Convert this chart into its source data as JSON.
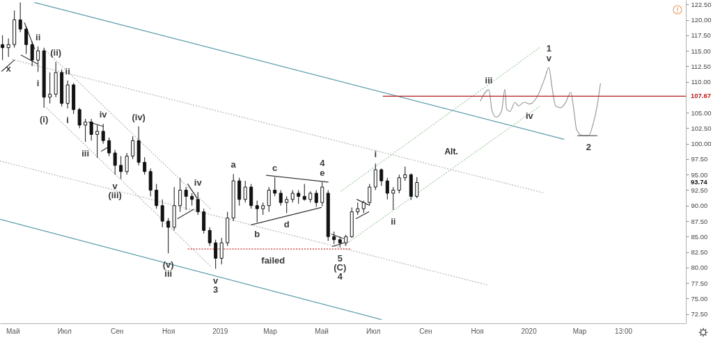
{
  "chart_data": {
    "type": "candlestick",
    "color": "#111111",
    "x": [
      "2018-04-19",
      "2018-04-26",
      "2018-05-03",
      "2018-05-10",
      "2018-05-17",
      "2018-05-24",
      "2018-05-31",
      "2018-06-07",
      "2018-06-14",
      "2018-06-21",
      "2018-06-28",
      "2018-07-05",
      "2018-07-12",
      "2018-07-19",
      "2018-07-26",
      "2018-08-02",
      "2018-08-09",
      "2018-08-16",
      "2018-08-23",
      "2018-08-30",
      "2018-09-06",
      "2018-09-13",
      "2018-09-20",
      "2018-09-27",
      "2018-10-04",
      "2018-10-11",
      "2018-10-18",
      "2018-10-25",
      "2018-11-01",
      "2018-11-08",
      "2018-11-15",
      "2018-11-22",
      "2018-11-29",
      "2018-12-06",
      "2018-12-13",
      "2018-12-20",
      "2018-12-27",
      "2019-01-03",
      "2019-01-10",
      "2019-01-17",
      "2019-01-24",
      "2019-01-31",
      "2019-02-07",
      "2019-02-14",
      "2019-02-21",
      "2019-02-28",
      "2019-03-07",
      "2019-03-14",
      "2019-03-21",
      "2019-03-28",
      "2019-04-04",
      "2019-04-11",
      "2019-04-18",
      "2019-04-25",
      "2019-05-02",
      "2019-05-09",
      "2019-05-16",
      "2019-05-23",
      "2019-05-30",
      "2019-06-06",
      "2019-06-13",
      "2019-06-20",
      "2019-06-27",
      "2019-07-04",
      "2019-07-11",
      "2019-07-18",
      "2019-07-25",
      "2019-08-01",
      "2019-08-08",
      "2019-08-15",
      "2019-08-22"
    ],
    "ohlc": [
      [
        116.0,
        117.5,
        113.5,
        115.5
      ],
      [
        115.5,
        117.0,
        114.0,
        116.0
      ],
      [
        116.0,
        121.5,
        115.5,
        120.0
      ],
      [
        120.0,
        122.8,
        118.0,
        118.5
      ],
      [
        118.5,
        119.0,
        114.5,
        116.0
      ],
      [
        116.0,
        116.5,
        112.5,
        113.5
      ],
      [
        113.5,
        115.7,
        111.6,
        115.0
      ],
      [
        115.0,
        115.5,
        105.8,
        107.5
      ],
      [
        107.5,
        111.5,
        106.5,
        108.0
      ],
      [
        108.0,
        113.2,
        107.5,
        111.5
      ],
      [
        111.5,
        112.0,
        106.0,
        106.5
      ],
      [
        106.5,
        110.2,
        105.7,
        109.5
      ],
      [
        109.5,
        109.8,
        104.8,
        105.5
      ],
      [
        105.5,
        105.8,
        102.5,
        103.0
      ],
      [
        103.0,
        104.0,
        100.3,
        103.5
      ],
      [
        103.5,
        104.0,
        100.5,
        101.5
      ],
      [
        101.5,
        103.0,
        97.7,
        102.0
      ],
      [
        102.0,
        103.2,
        100.0,
        100.5
      ],
      [
        100.5,
        101.0,
        98.0,
        98.5
      ],
      [
        98.5,
        99.0,
        95.0,
        96.5
      ],
      [
        96.5,
        98.0,
        94.3,
        95.5
      ],
      [
        95.5,
        98.5,
        95.0,
        98.0
      ],
      [
        98.0,
        101.2,
        97.5,
        100.5
      ],
      [
        100.5,
        102.8,
        96.5,
        97.0
      ],
      [
        97.0,
        97.8,
        95.0,
        95.5
      ],
      [
        95.5,
        96.0,
        91.5,
        92.5
      ],
      [
        92.5,
        93.5,
        89.5,
        90.0
      ],
      [
        90.0,
        91.0,
        86.5,
        87.5
      ],
      [
        87.5,
        88.0,
        82.3,
        86.5
      ],
      [
        86.5,
        93.0,
        86.0,
        90.0
      ],
      [
        90.0,
        94.5,
        89.0,
        92.5
      ],
      [
        92.5,
        93.0,
        89.3,
        91.5
      ],
      [
        91.5,
        92.0,
        90.0,
        91.0
      ],
      [
        91.0,
        92.2,
        88.5,
        89.0
      ],
      [
        89.0,
        89.5,
        85.5,
        86.0
      ],
      [
        86.0,
        86.5,
        83.5,
        84.0
      ],
      [
        84.0,
        84.5,
        79.8,
        81.5
      ],
      [
        81.5,
        84.8,
        80.5,
        84.0
      ],
      [
        84.0,
        89.0,
        83.5,
        88.0
      ],
      [
        88.0,
        95.1,
        87.5,
        94.0
      ],
      [
        94.0,
        94.5,
        90.0,
        91.0
      ],
      [
        91.0,
        94.0,
        90.5,
        93.0
      ],
      [
        93.0,
        93.5,
        89.5,
        90.0
      ],
      [
        90.0,
        90.8,
        87.3,
        89.5
      ],
      [
        89.5,
        90.5,
        88.5,
        90.0
      ],
      [
        90.0,
        93.0,
        89.0,
        92.5
      ],
      [
        92.5,
        94.6,
        91.5,
        92.0
      ],
      [
        92.0,
        92.5,
        90.0,
        90.5
      ],
      [
        90.5,
        91.5,
        88.8,
        91.0
      ],
      [
        91.0,
        92.5,
        90.5,
        92.0
      ],
      [
        92.0,
        92.5,
        90.3,
        91.5
      ],
      [
        91.5,
        93.5,
        90.8,
        91.0
      ],
      [
        91.0,
        92.3,
        90.5,
        92.0
      ],
      [
        92.0,
        92.5,
        89.8,
        90.5
      ],
      [
        90.5,
        93.8,
        89.9,
        93.0
      ],
      [
        92.0,
        92.5,
        84.3,
        85.0
      ],
      [
        85.0,
        85.8,
        83.8,
        84.5
      ],
      [
        84.5,
        85.0,
        83.3,
        84.0
      ],
      [
        84.0,
        85.3,
        83.5,
        85.0
      ],
      [
        85.0,
        89.7,
        84.8,
        89.0
      ],
      [
        89.0,
        90.5,
        88.5,
        89.5
      ],
      [
        89.5,
        90.8,
        88.8,
        90.5
      ],
      [
        90.5,
        93.5,
        90.0,
        93.0
      ],
      [
        93.0,
        96.8,
        92.5,
        95.8
      ],
      [
        95.8,
        96.0,
        93.2,
        94.0
      ],
      [
        94.0,
        94.5,
        91.0,
        92.0
      ],
      [
        92.0,
        93.0,
        89.3,
        92.5
      ],
      [
        92.5,
        95.0,
        92.0,
        94.5
      ],
      [
        94.5,
        96.3,
        94.0,
        95.0
      ],
      [
        95.0,
        95.2,
        90.9,
        91.5
      ],
      [
        91.5,
        94.6,
        91.2,
        93.74
      ]
    ],
    "series": [
      {
        "type": "line",
        "color": "#5a9bab",
        "line_style": "solid",
        "x": [
          "2018-05-27",
          "2020-02-12"
        ],
        "values": [
          122.8,
          100.7
        ]
      },
      {
        "type": "line",
        "color": "#5a9bab",
        "line_style": "solid",
        "x": [
          "2018-04-16",
          "2019-07-11"
        ],
        "values": [
          87.8,
          71.6
        ]
      },
      {
        "type": "line",
        "color": "#b5b5b5",
        "line_style": "dotted",
        "x": [
          "2018-04-30",
          "2020-01-18"
        ],
        "values": [
          113.6,
          92.1
        ]
      },
      {
        "type": "line",
        "color": "#b5b5b5",
        "line_style": "dotted",
        "x": [
          "2018-04-16",
          "2019-11-13"
        ],
        "values": [
          97.2,
          77.2
        ]
      },
      {
        "type": "line",
        "color": "#b5b5b5",
        "line_style": "dotted",
        "x": [
          "2018-06-07",
          "2018-12-21"
        ],
        "values": [
          115.3,
          89.5
        ]
      },
      {
        "type": "line",
        "color": "#b5b5b5",
        "line_style": "dotted",
        "x": [
          "2018-06-10",
          "2018-12-21"
        ],
        "values": [
          105.8,
          80.2
        ]
      },
      {
        "type": "line",
        "color": "#9fc89f",
        "line_style": "dotted",
        "x": [
          "2019-05-24",
          "2020-01-14"
        ],
        "values": [
          92.3,
          115.5
        ]
      },
      {
        "type": "line",
        "color": "#9fc89f",
        "line_style": "dotted",
        "x": [
          "2019-05-28",
          "2020-01-14"
        ],
        "values": [
          83.6,
          106.0
        ]
      },
      {
        "type": "line",
        "color": "#c62828",
        "line_style": "dotted",
        "x": [
          "2018-11-24",
          "2019-06-04"
        ],
        "values": [
          83.0,
          83.0
        ]
      },
      {
        "type": "line",
        "color": "#333333",
        "line_style": "solid",
        "x": [
          "2018-05-15",
          "2018-05-27"
        ],
        "values": [
          119.5,
          115.3
        ]
      },
      {
        "type": "line",
        "color": "#333333",
        "line_style": "solid",
        "x": [
          "2018-05-11",
          "2018-05-30"
        ],
        "values": [
          114.3,
          112.9
        ]
      },
      {
        "type": "line",
        "color": "#333333",
        "line_style": "solid",
        "x": [
          "2018-04-18",
          "2018-05-03"
        ],
        "values": [
          111.7,
          113.5
        ]
      },
      {
        "type": "line",
        "color": "#333333",
        "line_style": "solid",
        "x": [
          "2018-07-30",
          "2018-08-16"
        ],
        "values": [
          103.5,
          102.8
        ]
      },
      {
        "type": "line",
        "color": "#333333",
        "line_style": "solid",
        "x": [
          "2018-08-14",
          "2018-08-24"
        ],
        "values": [
          98.8,
          99.6
        ]
      },
      {
        "type": "line",
        "color": "#333333",
        "line_style": "solid",
        "x": [
          "2018-11-24",
          "2018-12-05"
        ],
        "values": [
          93.5,
          91.2
        ]
      },
      {
        "type": "line",
        "color": "#333333",
        "line_style": "solid",
        "x": [
          "2018-11-12",
          "2018-12-01"
        ],
        "values": [
          87.9,
          89.4
        ]
      },
      {
        "type": "line",
        "color": "#333333",
        "line_style": "solid",
        "x": [
          "2019-02-25",
          "2019-05-09"
        ],
        "values": [
          94.9,
          93.8
        ]
      },
      {
        "type": "line",
        "color": "#333333",
        "line_style": "solid",
        "x": [
          "2019-02-07",
          "2019-05-01"
        ],
        "values": [
          86.9,
          89.7
        ]
      },
      {
        "type": "line",
        "color": "#333333",
        "line_style": "solid",
        "x": [
          "2019-05-13",
          "2019-05-27"
        ],
        "values": [
          85.4,
          84.7
        ]
      },
      {
        "type": "line",
        "color": "#333333",
        "line_style": "solid",
        "x": [
          "2019-05-14",
          "2019-05-28"
        ],
        "values": [
          83.4,
          84.0
        ]
      },
      {
        "type": "line",
        "color": "#333333",
        "line_style": "solid",
        "x": [
          "2019-06-12",
          "2019-06-26"
        ],
        "values": [
          91.0,
          90.1
        ]
      },
      {
        "type": "line",
        "color": "#333333",
        "line_style": "solid",
        "x": [
          "2019-06-11",
          "2019-06-26"
        ],
        "values": [
          87.9,
          89.0
        ]
      },
      {
        "type": "line",
        "color": "#999999",
        "line_style": "solid",
        "x": [
          "2019-11-05",
          "2019-11-15",
          "2019-11-19",
          "2019-11-24",
          "2019-11-30",
          "2019-12-04",
          "2019-12-06",
          "2019-12-10",
          "2019-12-16",
          "2019-12-20",
          "2019-12-27",
          "2020-01-02",
          "2020-01-12",
          "2020-01-20",
          "2020-01-25",
          "2020-01-29",
          "2020-02-02",
          "2020-02-08",
          "2020-02-14",
          "2020-02-20",
          "2020-02-23",
          "2020-02-27",
          "2020-03-05",
          "2020-03-12",
          "2020-03-17",
          "2020-03-22",
          "2020-03-26"
        ],
        "values": [
          106.9,
          108.7,
          105.2,
          104.3,
          105.2,
          108.8,
          105.6,
          105.2,
          106.7,
          106.1,
          106.7,
          106.4,
          107.8,
          110.5,
          112.3,
          108.9,
          106.1,
          105.8,
          106.7,
          108.3,
          106.0,
          102.2,
          101.3,
          101.3,
          103.0,
          106.0,
          109.7
        ]
      },
      {
        "type": "line",
        "color": "#555555",
        "line_style": "solid",
        "x": [
          "2020-02-28",
          "2020-03-22"
        ],
        "values": [
          101.3,
          101.3
        ]
      },
      {
        "type": "line",
        "color": "#b71c1c",
        "line_style": "solid",
        "x": [
          "2019-07-13",
          "2020-07-05"
        ],
        "values": [
          107.67,
          107.67
        ]
      }
    ],
    "annotations": [
      {
        "text": "x",
        "x": "2018-04-26",
        "y": 114.0
      },
      {
        "text": "ii",
        "x": "2018-05-31",
        "y": 115.7
      },
      {
        "text": "(ii)",
        "x": "2018-06-21",
        "y": 113.2
      },
      {
        "text": "i",
        "x": "2018-05-31",
        "y": 111.6
      },
      {
        "text": "ii",
        "x": "2018-07-05",
        "y": 110.2
      },
      {
        "text": "(i)",
        "x": "2018-06-07",
        "y": 105.8
      },
      {
        "text": "i",
        "x": "2018-07-05",
        "y": 105.7
      },
      {
        "text": "iv",
        "x": "2018-08-16",
        "y": 103.2
      },
      {
        "text": "iii",
        "x": "2018-07-26",
        "y": 100.3
      },
      {
        "text": "(iv)",
        "x": "2018-09-27",
        "y": 102.8
      },
      {
        "text": "v",
        "x": "2018-08-30",
        "y": 95.0
      },
      {
        "text": "(iii)",
        "x": "2018-08-30",
        "y": 95.0
      },
      {
        "text": "iv",
        "x": "2018-12-06",
        "y": 92.2
      },
      {
        "text": "(v)",
        "x": "2018-11-01",
        "y": 82.3
      },
      {
        "text": "iii",
        "x": "2018-11-01",
        "y": 82.3
      },
      {
        "text": "v",
        "x": "2018-12-27",
        "y": 79.8
      },
      {
        "text": "3",
        "x": "2018-12-27",
        "y": 79.8
      },
      {
        "text": "a",
        "x": "2019-01-17",
        "y": 95.1
      },
      {
        "text": "c",
        "x": "2019-03-07",
        "y": 94.6
      },
      {
        "text": "b",
        "x": "2019-02-14",
        "y": 87.3
      },
      {
        "text": "d",
        "x": "2019-03-21",
        "y": 88.8
      },
      {
        "text": "e",
        "x": "2019-05-02",
        "y": 93.8
      },
      {
        "text": "4",
        "x": "2019-05-02",
        "y": 93.8
      },
      {
        "text": "failed",
        "x": "2019-03-05",
        "y": 83.0
      },
      {
        "text": "5",
        "x": "2019-05-23",
        "y": 83.3
      },
      {
        "text": "(C)",
        "x": "2019-05-23",
        "y": 83.3
      },
      {
        "text": "4",
        "x": "2019-05-23",
        "y": 83.3
      },
      {
        "text": "i",
        "x": "2019-07-04",
        "y": 96.8
      },
      {
        "text": "ii",
        "x": "2019-07-25",
        "y": 89.3
      },
      "Alt.",
      {
        "text": "iii",
        "x": "2019-11-15",
        "y": 108.7
      },
      {
        "text": "iv",
        "x": "2020-01-02",
        "y": 106.4
      },
      {
        "text": "v",
        "x": "2020-01-25",
        "y": 112.3
      },
      {
        "text": "1",
        "x": "2020-01-25",
        "y": 112.3
      },
      {
        "text": "2",
        "x": "2020-03-12",
        "y": 101.3
      },
      {
        "text": "107.67",
        "x": "2020-07-05",
        "y": 107.67
      },
      "93.74"
    ],
    "xlim": [
      "2018-04-16",
      "2020-07-05"
    ],
    "ylim": [
      71.0,
      123.2
    ],
    "xticks": [
      {
        "value": "2018-05-01",
        "label": "Май"
      },
      {
        "value": "2018-07-01",
        "label": "Июл"
      },
      {
        "value": "2018-09-01",
        "label": "Сен"
      },
      {
        "value": "2018-11-01",
        "label": "Ноя"
      },
      {
        "value": "2019-01-01",
        "label": "2019"
      },
      {
        "value": "2019-03-01",
        "label": "Мар"
      },
      {
        "value": "2019-05-01",
        "label": "Май"
      },
      {
        "value": "2019-07-01",
        "label": "Июл"
      },
      {
        "value": "2019-09-01",
        "label": "Сен"
      },
      {
        "value": "2019-11-01",
        "label": "Ноя"
      },
      {
        "value": "2020-01-01",
        "label": "2020"
      },
      {
        "value": "2020-03-01",
        "label": "Мар"
      },
      {
        "value": "2020-04-22",
        "label": "13:00"
      }
    ],
    "yticks": [
      {
        "value": 72.5,
        "label": "72.50"
      },
      {
        "value": 75,
        "label": "75.00"
      },
      {
        "value": 77.5,
        "label": "77.50"
      },
      {
        "value": 80,
        "label": "80.00"
      },
      {
        "value": 82.5,
        "label": "82.50"
      },
      {
        "value": 85,
        "label": "85.00"
      },
      {
        "value": 87.5,
        "label": "87.50"
      },
      {
        "value": 90,
        "label": "90.00"
      },
      {
        "value": 92.5,
        "label": "92.50"
      },
      {
        "value": 95,
        "label": "95.00"
      },
      {
        "value": 97.5,
        "label": "97.50"
      },
      {
        "value": 100,
        "label": "100.00"
      },
      {
        "value": 102.5,
        "label": "102.50"
      },
      {
        "value": 105,
        "label": "105.00"
      },
      {
        "value": 110,
        "label": "110.00"
      },
      {
        "value": 112.5,
        "label": "112.50"
      },
      {
        "value": 115,
        "label": "115.00"
      },
      {
        "value": 117.5,
        "label": "117.50"
      },
      {
        "value": 120,
        "label": "120.00"
      },
      {
        "value": 122.5,
        "label": "122.50"
      }
    ]
  }
}
